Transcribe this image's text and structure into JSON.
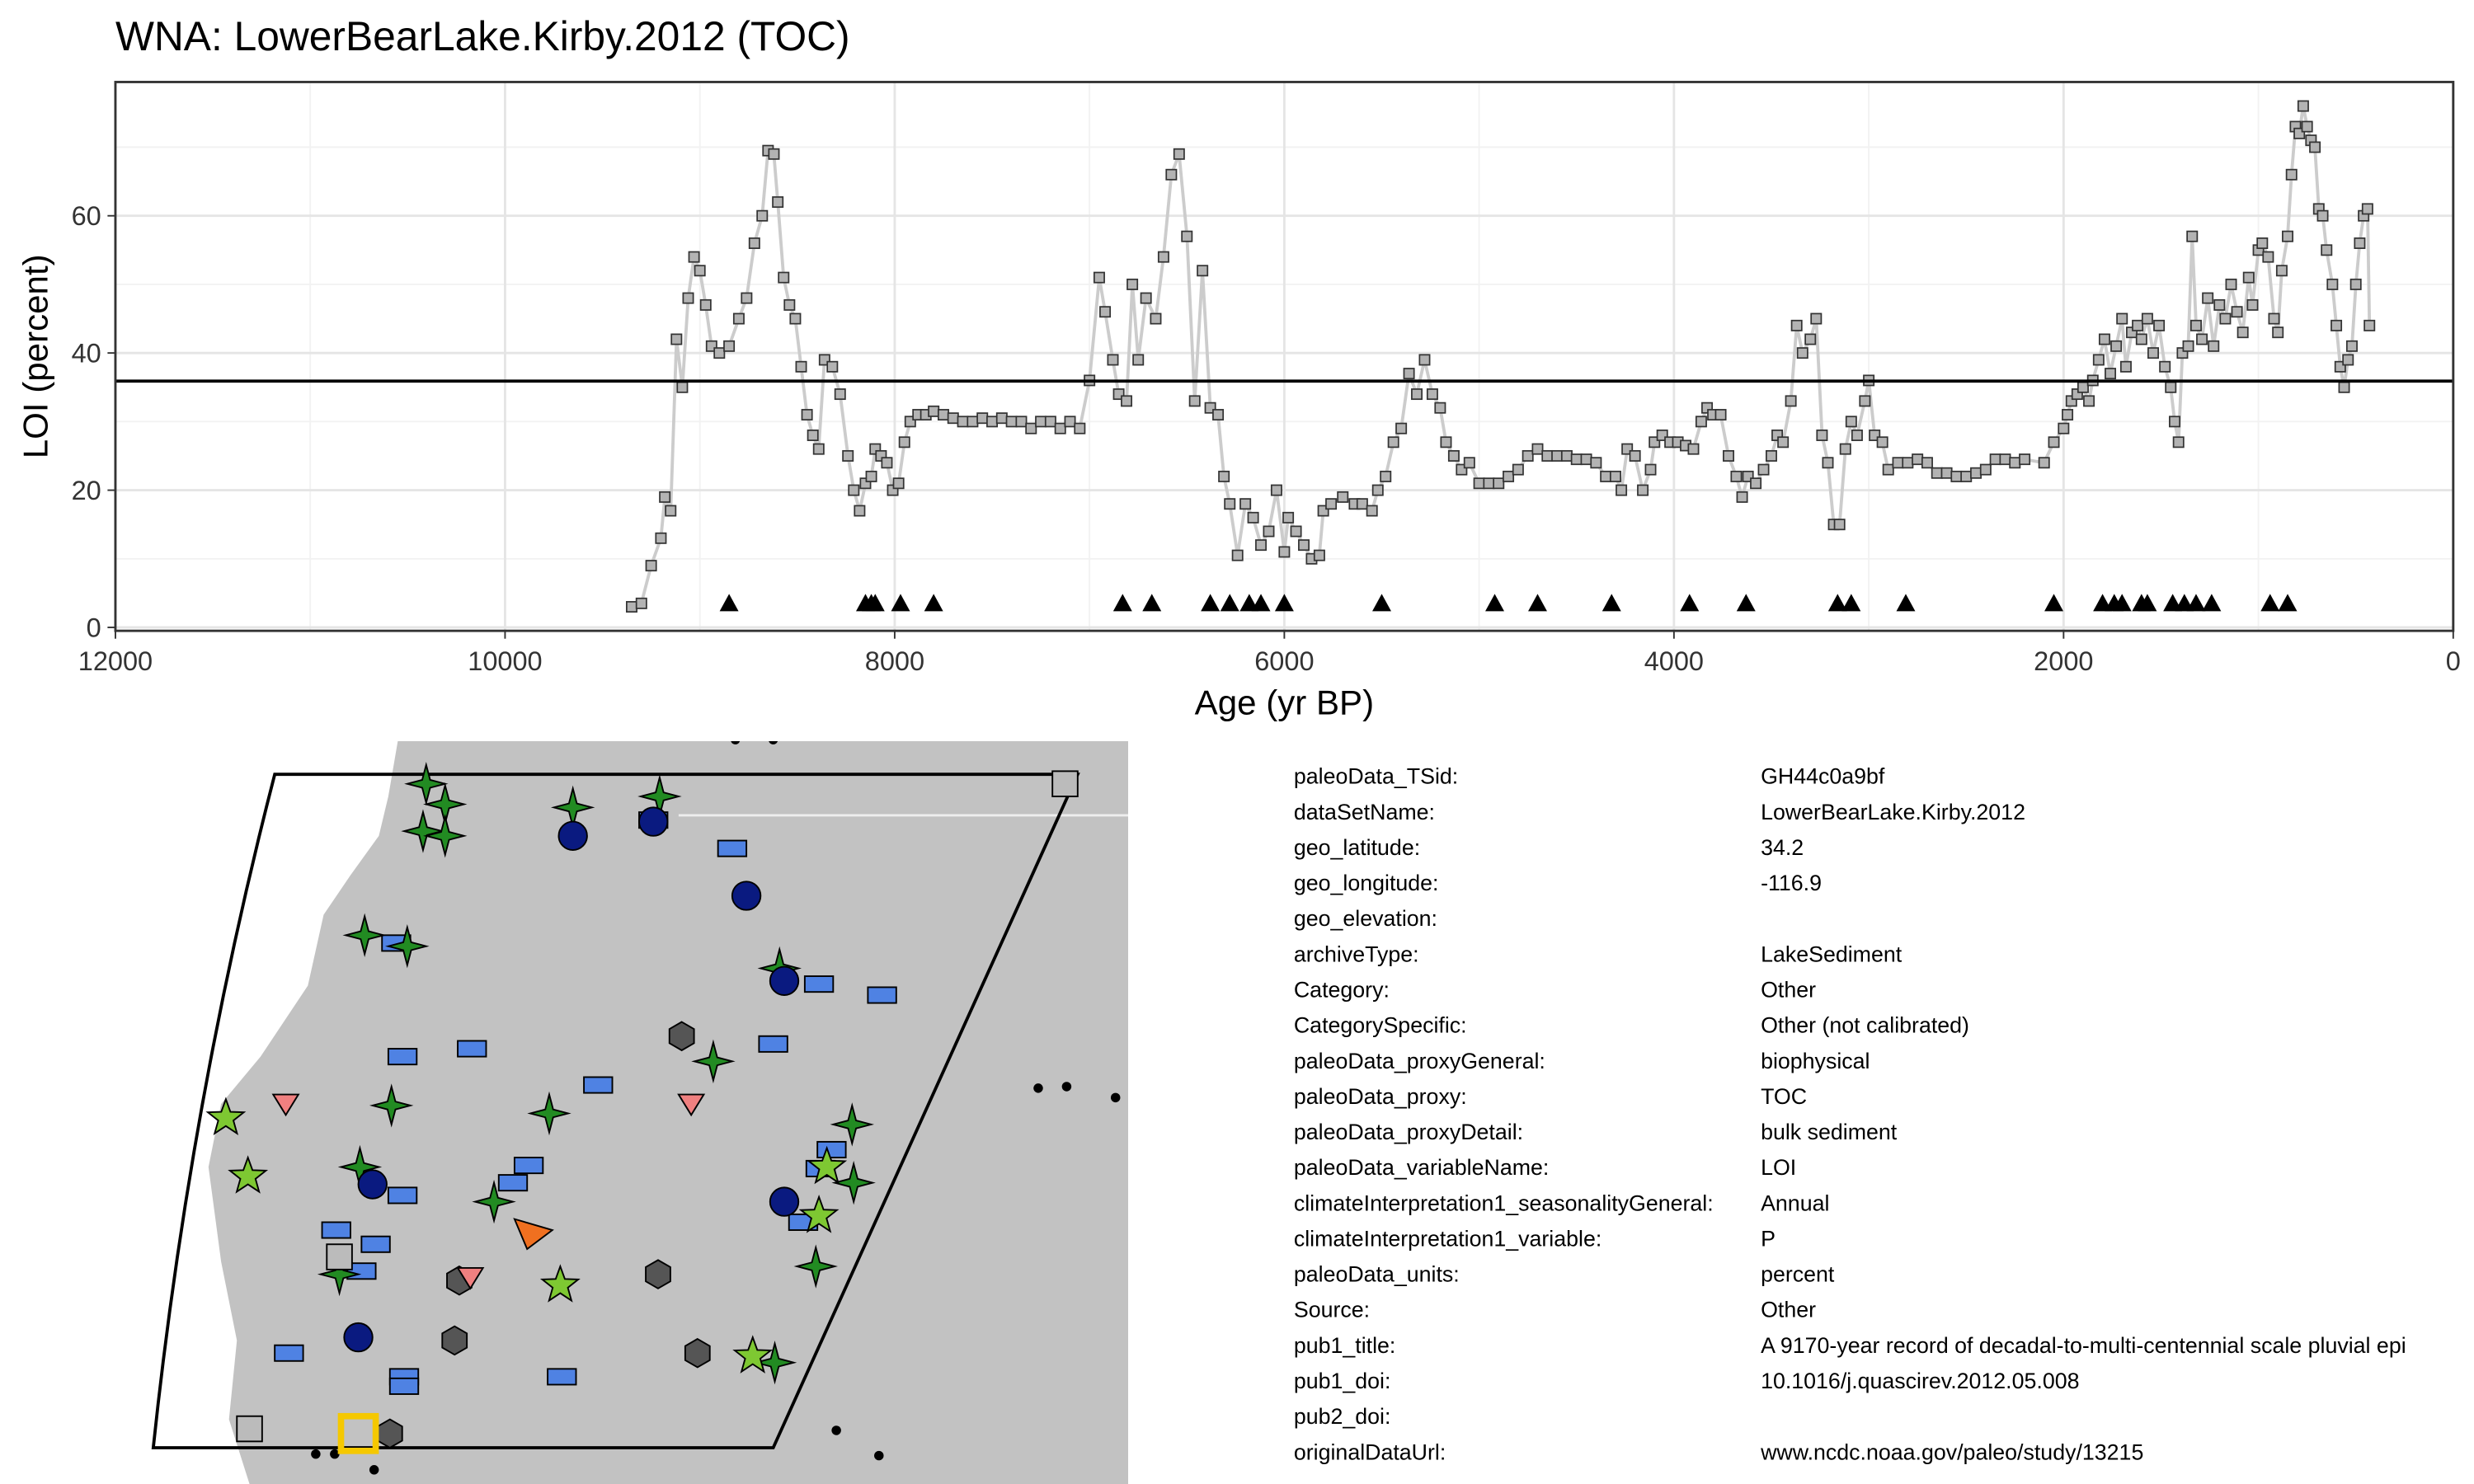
{
  "chart_data": {
    "type": "line",
    "title": "WNA: LowerBearLake.Kirby.2012 (TOC)",
    "x_label": "Age (yr BP)",
    "y_label": "LOI (percent)",
    "xlim": [
      12000,
      0
    ],
    "ylim": [
      -0.5,
      79.5
    ],
    "xticks": [
      12000,
      10000,
      8000,
      6000,
      4000,
      2000,
      0
    ],
    "yticks": [
      0,
      20,
      40,
      60
    ],
    "grid": true,
    "mean_line": 35.9,
    "x": [
      9350,
      9300,
      9250,
      9200,
      9180,
      9150,
      9120,
      9090,
      9060,
      9030,
      9000,
      8970,
      8940,
      8900,
      8850,
      8800,
      8760,
      8720,
      8680,
      8650,
      8620,
      8600,
      8570,
      8540,
      8510,
      8480,
      8450,
      8420,
      8390,
      8360,
      8320,
      8280,
      8240,
      8210,
      8180,
      8150,
      8120,
      8100,
      8070,
      8040,
      8010,
      7980,
      7950,
      7920,
      7880,
      7840,
      7800,
      7750,
      7700,
      7650,
      7600,
      7550,
      7500,
      7450,
      7400,
      7350,
      7300,
      7250,
      7200,
      7150,
      7100,
      7050,
      7000,
      6950,
      6920,
      6880,
      6850,
      6810,
      6780,
      6750,
      6710,
      6660,
      6620,
      6580,
      6540,
      6500,
      6460,
      6420,
      6380,
      6340,
      6310,
      6280,
      6240,
      6200,
      6160,
      6120,
      6080,
      6040,
      6000,
      5980,
      5940,
      5900,
      5860,
      5820,
      5800,
      5760,
      5700,
      5640,
      5600,
      5550,
      5520,
      5480,
      5440,
      5400,
      5360,
      5320,
      5280,
      5240,
      5200,
      5170,
      5130,
      5090,
      5050,
      5000,
      4950,
      4900,
      4850,
      4800,
      4750,
      4700,
      4650,
      4600,
      4550,
      4500,
      4450,
      4400,
      4350,
      4300,
      4270,
      4240,
      4200,
      4160,
      4120,
      4100,
      4060,
      4020,
      3980,
      3940,
      3900,
      3860,
      3830,
      3800,
      3760,
      3720,
      3680,
      3650,
      3620,
      3580,
      3540,
      3500,
      3470,
      3440,
      3400,
      3370,
      3340,
      3300,
      3270,
      3240,
      3210,
      3180,
      3150,
      3120,
      3090,
      3060,
      3020,
      3000,
      2970,
      2930,
      2900,
      2850,
      2800,
      2750,
      2700,
      2650,
      2600,
      2550,
      2500,
      2450,
      2400,
      2350,
      2300,
      2250,
      2200,
      2100,
      2050,
      2000,
      1980,
      1960,
      1930,
      1900,
      1870,
      1850,
      1820,
      1790,
      1760,
      1730,
      1700,
      1680,
      1650,
      1620,
      1600,
      1570,
      1540,
      1510,
      1480,
      1450,
      1430,
      1410,
      1390,
      1360,
      1340,
      1320,
      1290,
      1260,
      1230,
      1200,
      1170,
      1140,
      1110,
      1080,
      1050,
      1030,
      1000,
      980,
      950,
      920,
      900,
      880,
      850,
      830,
      810,
      790,
      770,
      750,
      730,
      710,
      690,
      670,
      650,
      620,
      600,
      580,
      560,
      540,
      520,
      500,
      480,
      460,
      440,
      430
    ],
    "series": [
      {
        "line_color": "#cccccc",
        "marker_color": "#b3b3b3",
        "values": [
          3,
          3.5,
          9,
          13,
          19,
          17,
          42,
          35,
          48,
          54,
          52,
          47,
          41,
          40,
          41,
          45,
          48,
          56,
          60,
          69.5,
          69,
          62,
          51,
          47,
          45,
          38,
          31,
          28,
          26,
          39,
          38,
          34,
          25,
          20,
          17,
          21,
          22,
          26,
          25,
          24,
          20,
          21,
          27,
          30,
          31,
          31,
          31.5,
          31,
          30.5,
          30,
          30,
          30.5,
          30,
          30.5,
          30,
          30,
          29,
          30,
          30,
          29,
          30,
          29,
          36,
          51,
          46,
          39,
          34,
          33,
          50,
          39,
          48,
          45,
          54,
          66,
          69,
          57,
          33,
          52,
          32,
          31,
          22,
          18,
          10.5,
          18,
          16,
          12,
          14,
          20,
          11,
          16,
          14,
          12,
          10,
          10.5,
          17,
          18,
          19,
          18,
          18,
          17,
          20,
          22,
          27,
          29,
          37,
          34,
          39,
          34,
          32,
          27,
          25,
          23,
          24,
          21,
          21,
          21,
          22,
          23,
          25,
          26,
          25,
          25,
          25,
          24.5,
          24.5,
          24,
          22,
          22,
          20,
          26,
          25,
          20,
          23,
          27,
          28,
          27,
          27,
          26.5,
          26,
          30,
          32,
          31,
          31,
          25,
          22,
          19,
          22,
          21,
          23,
          25,
          28,
          27,
          33,
          44,
          40,
          42,
          45,
          28,
          24,
          15,
          15,
          26,
          30,
          28,
          33,
          36,
          28,
          27,
          23,
          24,
          24,
          24.5,
          24,
          22.5,
          22.5,
          22,
          22,
          22.5,
          23,
          24.5,
          24.5,
          24,
          24.5,
          24,
          27,
          29,
          31,
          33,
          34,
          35,
          33,
          36,
          39,
          42,
          37,
          41,
          45,
          38,
          43,
          44,
          42,
          45,
          40,
          44,
          38,
          35,
          30,
          27,
          40,
          41,
          57,
          44,
          42,
          48,
          41,
          47,
          45,
          50,
          46,
          43,
          51,
          47,
          55,
          56,
          54,
          45,
          43,
          52,
          57,
          66,
          73,
          72,
          76,
          73,
          71,
          70,
          61,
          60,
          55,
          50,
          44,
          38,
          35,
          39,
          41,
          50,
          56,
          60,
          61,
          44
        ]
      }
    ],
    "age_controls": {
      "y": 3.5,
      "x": [
        8850,
        8150,
        8120,
        8100,
        7970,
        7800,
        6830,
        6680,
        6380,
        6280,
        6180,
        6120,
        6000,
        5500,
        4920,
        4700,
        4320,
        3920,
        3630,
        3160,
        3090,
        2810,
        2050,
        1800,
        1740,
        1700,
        1600,
        1570,
        1440,
        1380,
        1320,
        1240,
        940,
        850
      ]
    }
  },
  "metadata": {
    "rows": [
      {
        "key": "paleoData_TSid:",
        "value": "GH44c0a9bf"
      },
      {
        "key": "dataSetName:",
        "value": "LowerBearLake.Kirby.2012"
      },
      {
        "key": "geo_latitude:",
        "value": "34.2"
      },
      {
        "key": "geo_longitude:",
        "value": "-116.9"
      },
      {
        "key": "geo_elevation:"
      },
      {
        "key": "archiveType:",
        "value": "LakeSediment"
      },
      {
        "key": "Category:",
        "value": "Other"
      },
      {
        "key": "CategorySpecific:",
        "value": "Other (not calibrated)"
      },
      {
        "key": "paleoData_proxyGeneral:",
        "value": "biophysical"
      },
      {
        "key": "paleoData_proxy:",
        "value": "TOC"
      },
      {
        "key": "paleoData_proxyDetail:",
        "value": "bulk sediment"
      },
      {
        "key": "paleoData_variableName:",
        "value": "LOI"
      },
      {
        "key": "climateInterpretation1_seasonalityGeneral:",
        "value": "Annual"
      },
      {
        "key": "climateInterpretation1_variable:",
        "value": "P"
      },
      {
        "key": "paleoData_units:",
        "value": "percent"
      },
      {
        "key": "Source:",
        "value": "Other"
      },
      {
        "key": "pub1_title:",
        "value": "A 9170-year record of decadal-to-multi-centennial scale pluvial epi"
      },
      {
        "key": "pub1_doi:",
        "value": "10.1016/j.quascirev.2012.05.008"
      },
      {
        "key": "pub2_doi:"
      },
      {
        "key": "originalDataUrl:",
        "value": "www.ncdc.noaa.gov/paleo/study/13215"
      }
    ]
  }
}
